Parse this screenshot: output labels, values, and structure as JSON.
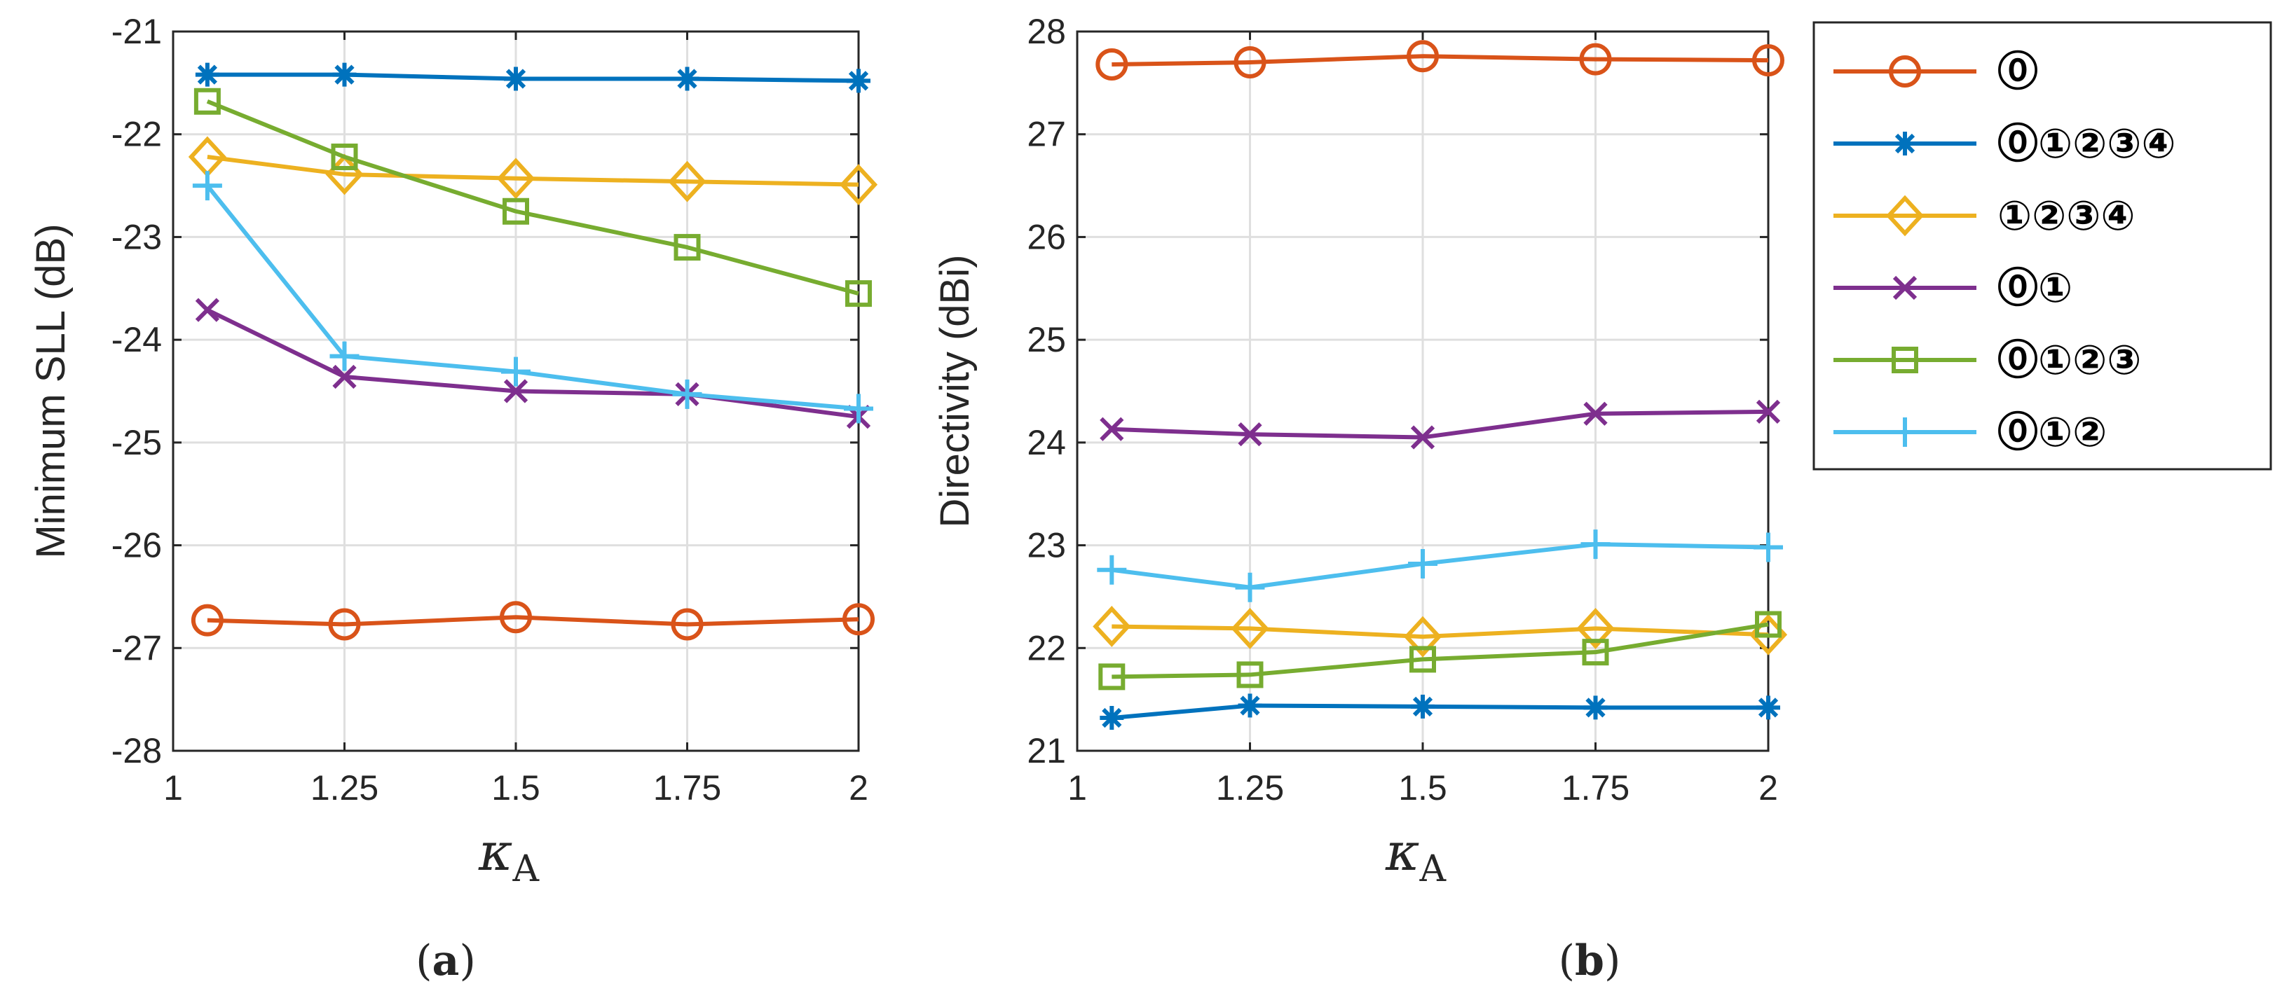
{
  "colors": {
    "orange": "#D95319",
    "blue": "#0072BD",
    "yellow": "#EDB120",
    "purple": "#7E2F8E",
    "green": "#77AC30",
    "cyan": "#4DBEEE"
  },
  "legend": [
    {
      "label": "⓪",
      "color": "#D95319",
      "marker": "circle"
    },
    {
      "label": "⓪①②③④",
      "color": "#0072BD",
      "marker": "asterisk"
    },
    {
      "label": "①②③④",
      "color": "#EDB120",
      "marker": "diamond"
    },
    {
      "label": "⓪①",
      "color": "#7E2F8E",
      "marker": "x"
    },
    {
      "label": "⓪①②③",
      "color": "#77AC30",
      "marker": "square"
    },
    {
      "label": "⓪①②",
      "color": "#4DBEEE",
      "marker": "plus"
    }
  ],
  "chart_data": [
    {
      "type": "line",
      "caption": {
        "open": "(",
        "letter": "a",
        "close": ")"
      },
      "xlabel": {
        "symbol": "κ",
        "sub": "A"
      },
      "ylabel": "Minimum SLL (dB)",
      "xlim": [
        1,
        2
      ],
      "ylim": [
        -28,
        -21
      ],
      "grid": true,
      "xticks": [
        1,
        1.25,
        1.5,
        1.75,
        2
      ],
      "xtick_labels": [
        "1",
        "1.25",
        "1.5",
        "1.75",
        "2"
      ],
      "yticks": [
        -28,
        -27,
        -26,
        -25,
        -24,
        -23,
        -22,
        -21
      ],
      "ytick_labels": [
        "-28",
        "-27",
        "-26",
        "-25",
        "-24",
        "-23",
        "-22",
        "-21"
      ],
      "x": [
        1.05,
        1.25,
        1.5,
        1.75,
        2
      ],
      "series": [
        {
          "name": "⓪",
          "color": "#D95319",
          "marker": "circle",
          "values": [
            -26.73,
            -26.77,
            -26.7,
            -26.77,
            -26.72
          ]
        },
        {
          "name": "⓪①②③④",
          "color": "#0072BD",
          "marker": "asterisk",
          "values": [
            -21.42,
            -21.42,
            -21.46,
            -21.46,
            -21.48
          ]
        },
        {
          "name": "①②③④",
          "color": "#EDB120",
          "marker": "diamond",
          "values": [
            -22.22,
            -22.39,
            -22.43,
            -22.46,
            -22.49
          ]
        },
        {
          "name": "⓪①",
          "color": "#7E2F8E",
          "marker": "x",
          "values": [
            -23.71,
            -24.36,
            -24.5,
            -24.53,
            -24.75
          ]
        },
        {
          "name": "⓪①②③",
          "color": "#77AC30",
          "marker": "square",
          "values": [
            -21.68,
            -22.22,
            -22.75,
            -23.1,
            -23.55
          ]
        },
        {
          "name": "⓪①②",
          "color": "#4DBEEE",
          "marker": "plus",
          "values": [
            -22.5,
            -24.16,
            -24.31,
            -24.53,
            -24.67
          ]
        }
      ]
    },
    {
      "type": "line",
      "caption": {
        "open": "(",
        "letter": "b",
        "close": ")"
      },
      "xlabel": {
        "symbol": "κ",
        "sub": "A"
      },
      "ylabel": "Directivity (dBi)",
      "xlim": [
        1,
        2
      ],
      "ylim": [
        21,
        28
      ],
      "grid": true,
      "xticks": [
        1,
        1.25,
        1.5,
        1.75,
        2
      ],
      "xtick_labels": [
        "1",
        "1.25",
        "1.5",
        "1.75",
        "2"
      ],
      "yticks": [
        21,
        22,
        23,
        24,
        25,
        26,
        27,
        28
      ],
      "ytick_labels": [
        "21",
        "22",
        "23",
        "24",
        "25",
        "26",
        "27",
        "28"
      ],
      "x": [
        1.05,
        1.25,
        1.5,
        1.75,
        2
      ],
      "series": [
        {
          "name": "⓪",
          "color": "#D95319",
          "marker": "circle",
          "values": [
            27.68,
            27.7,
            27.76,
            27.73,
            27.72
          ]
        },
        {
          "name": "⓪①②③④",
          "color": "#0072BD",
          "marker": "asterisk",
          "values": [
            21.32,
            21.44,
            21.43,
            21.42,
            21.42
          ]
        },
        {
          "name": "①②③④",
          "color": "#EDB120",
          "marker": "diamond",
          "values": [
            22.21,
            22.19,
            22.11,
            22.19,
            22.13
          ]
        },
        {
          "name": "⓪①",
          "color": "#7E2F8E",
          "marker": "x",
          "values": [
            24.13,
            24.08,
            24.05,
            24.28,
            24.3
          ]
        },
        {
          "name": "⓪①②③",
          "color": "#77AC30",
          "marker": "square",
          "values": [
            21.72,
            21.74,
            21.89,
            21.96,
            22.23
          ]
        },
        {
          "name": "⓪①②",
          "color": "#4DBEEE",
          "marker": "plus",
          "values": [
            22.76,
            22.59,
            22.82,
            23.01,
            22.98
          ]
        }
      ]
    }
  ]
}
